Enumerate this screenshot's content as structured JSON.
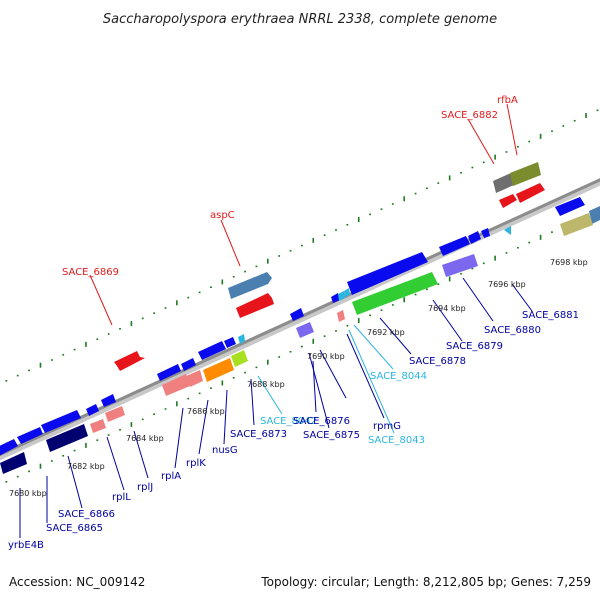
{
  "title": "Saccharopolyspora erythraea NRRL 2338, complete genome",
  "footer": {
    "accession": "Accession: NC_009142",
    "summary": "Topology: circular; Length: 8,212,805 bp; Genes: 7,259"
  },
  "kbp_labels": [
    "7680 kbp",
    "7682 kbp",
    "7684 kbp",
    "7686 kbp",
    "7688 kbp",
    "7690 kbp",
    "7692 kbp",
    "7694 kbp",
    "7696 kbp",
    "7698 kbp"
  ],
  "genes_top": [
    "SACE_6869",
    "aspC",
    "SACE_6882",
    "rfbA"
  ],
  "genes_bottom": [
    "yrbE4B",
    "SACE_6865",
    "SACE_6866",
    "rplL",
    "rplJ",
    "rplA",
    "rplK",
    "nusG",
    "SACE_8042",
    "SACE_6873",
    "SACE_6875",
    "SACE_6876",
    "SACE_8043",
    "rpmG",
    "SACE_8044",
    "SACE_6878",
    "SACE_6879",
    "SACE_6880",
    "SACE_6881"
  ],
  "colors": {
    "top_label": "#e31a1c",
    "cds_label": "#0000a0",
    "rna_label": "#2bb5e0",
    "backbone": "#8c8c8c",
    "tick": "#1e7a1e"
  }
}
